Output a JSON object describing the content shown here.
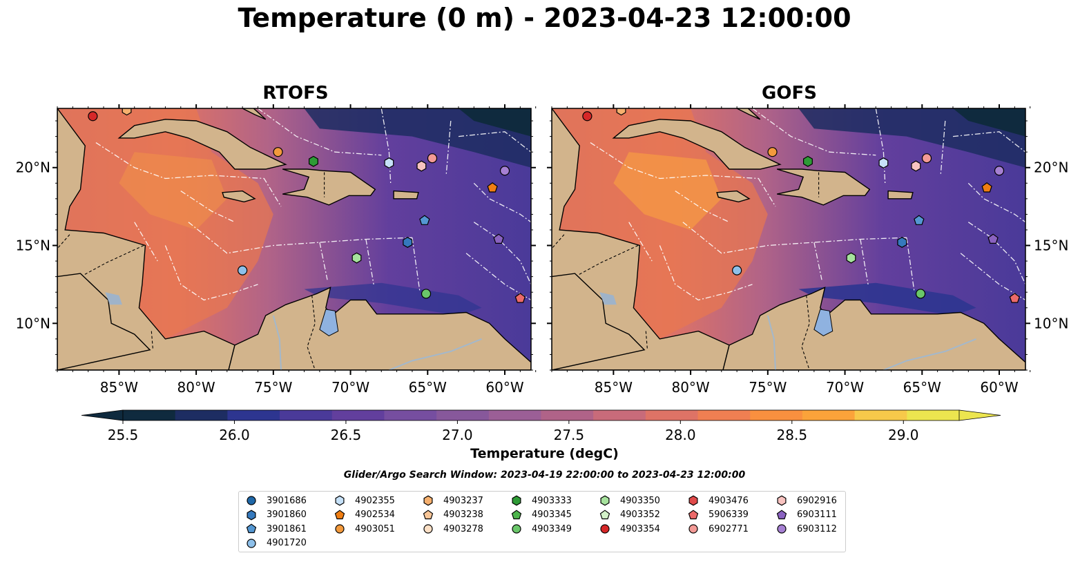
{
  "title": "Temperature (0 m) - 2023-04-23 12:00:00",
  "panels": [
    {
      "title": "RTOFS"
    },
    {
      "title": "GOFS"
    }
  ],
  "map": {
    "lon_range": [
      -89,
      -58.3
    ],
    "lat_range": [
      7,
      23.8
    ],
    "x_ticks": [
      "85°W",
      "80°W",
      "75°W",
      "70°W",
      "65°W",
      "60°W"
    ],
    "x_tick_values": [
      -85,
      -80,
      -75,
      -70,
      -65,
      -60
    ],
    "y_ticks": [
      "20°N",
      "15°N",
      "10°N"
    ],
    "y_tick_values": [
      20,
      15,
      10
    ],
    "colors": {
      "land": "#d2b48c",
      "lake": "#8fb2e0",
      "river": "#a3b8cc",
      "ocean_mid": "#7d4f9a"
    }
  },
  "colorbar": {
    "label": "Temperature (degC)",
    "ticks": [
      "25.5",
      "26.0",
      "26.5",
      "27.0",
      "27.5",
      "28.0",
      "28.5",
      "29.0"
    ],
    "tick_values": [
      25.5,
      26.0,
      26.5,
      27.0,
      27.5,
      28.0,
      28.5,
      29.0
    ],
    "range": [
      25.5,
      29.25
    ],
    "colors": [
      "#0f2a3e",
      "#1d2d62",
      "#2d3590",
      "#4a3a99",
      "#623f9d",
      "#764ea0",
      "#87589b",
      "#9b5f96",
      "#b06388",
      "#c86b7a",
      "#de7366",
      "#ef7f52",
      "#f9903f",
      "#fba33a",
      "#f7c94a",
      "#ece54f"
    ]
  },
  "search_window": "Glider/Argo Search Window: 2023-04-19 22:00:00 to 2023-04-23 12:00:00",
  "legend": [
    {
      "id": "3901686",
      "marker": "circle",
      "color": "#1f68a8"
    },
    {
      "id": "3901860",
      "marker": "hexagon",
      "color": "#3579bd"
    },
    {
      "id": "3901861",
      "marker": "pentagon",
      "color": "#5497d2"
    },
    {
      "id": "4901720",
      "marker": "circle",
      "color": "#8ec0ea"
    },
    {
      "id": "4902355",
      "marker": "hexagon",
      "color": "#c6e1f8"
    },
    {
      "id": "4902534",
      "marker": "pentagon",
      "color": "#f07e13"
    },
    {
      "id": "4903051",
      "marker": "circle",
      "color": "#f39a3c"
    },
    {
      "id": "4903237",
      "marker": "hexagon",
      "color": "#f6b06e"
    },
    {
      "id": "4903238",
      "marker": "pentagon",
      "color": "#f8c698"
    },
    {
      "id": "4903278",
      "marker": "circle",
      "color": "#fce0c6"
    },
    {
      "id": "4903333",
      "marker": "hexagon",
      "color": "#2e9b36"
    },
    {
      "id": "4903345",
      "marker": "pentagon",
      "color": "#4db44c"
    },
    {
      "id": "4903349",
      "marker": "circle",
      "color": "#6ac76a"
    },
    {
      "id": "4903350",
      "marker": "hexagon",
      "color": "#a6e29d"
    },
    {
      "id": "4903352",
      "marker": "pentagon",
      "color": "#d3f1c8"
    },
    {
      "id": "4903354",
      "marker": "circle",
      "color": "#d62728"
    },
    {
      "id": "4903476",
      "marker": "hexagon",
      "color": "#e04a4a"
    },
    {
      "id": "5906339",
      "marker": "pentagon",
      "color": "#ec6a6a"
    },
    {
      "id": "6902771",
      "marker": "circle",
      "color": "#f39a96"
    },
    {
      "id": "6902916",
      "marker": "hexagon",
      "color": "#f8c3c0"
    },
    {
      "id": "6903111",
      "marker": "pentagon",
      "color": "#8a62c0"
    },
    {
      "id": "6903112",
      "marker": "circle",
      "color": "#a680d3"
    }
  ],
  "floats": [
    {
      "id": "4903354",
      "lon": -86.7,
      "lat": 23.3
    },
    {
      "id": "4903051",
      "lon": -74.7,
      "lat": 21.0
    },
    {
      "id": "4903333",
      "lon": -72.4,
      "lat": 20.4
    },
    {
      "id": "4902355",
      "lon": -67.5,
      "lat": 20.3
    },
    {
      "id": "6902916",
      "lon": -65.4,
      "lat": 20.1
    },
    {
      "id": "6902771",
      "lon": -64.7,
      "lat": 20.6
    },
    {
      "id": "6903112",
      "lon": -60.0,
      "lat": 19.8
    },
    {
      "id": "4902534",
      "lon": -60.8,
      "lat": 18.7
    },
    {
      "id": "3901861",
      "lon": -65.2,
      "lat": 16.6
    },
    {
      "id": "3901860",
      "lon": -66.3,
      "lat": 15.2
    },
    {
      "id": "6903111",
      "lon": -60.4,
      "lat": 15.4
    },
    {
      "id": "4903350",
      "lon": -69.6,
      "lat": 14.2
    },
    {
      "id": "4901720",
      "lon": -77.0,
      "lat": 13.4
    },
    {
      "id": "4903349",
      "lon": -65.1,
      "lat": 11.9
    },
    {
      "id": "5906339",
      "lon": -59.0,
      "lat": 11.6
    },
    {
      "id": "4903237",
      "lon": -84.5,
      "lat": 23.7
    }
  ]
}
